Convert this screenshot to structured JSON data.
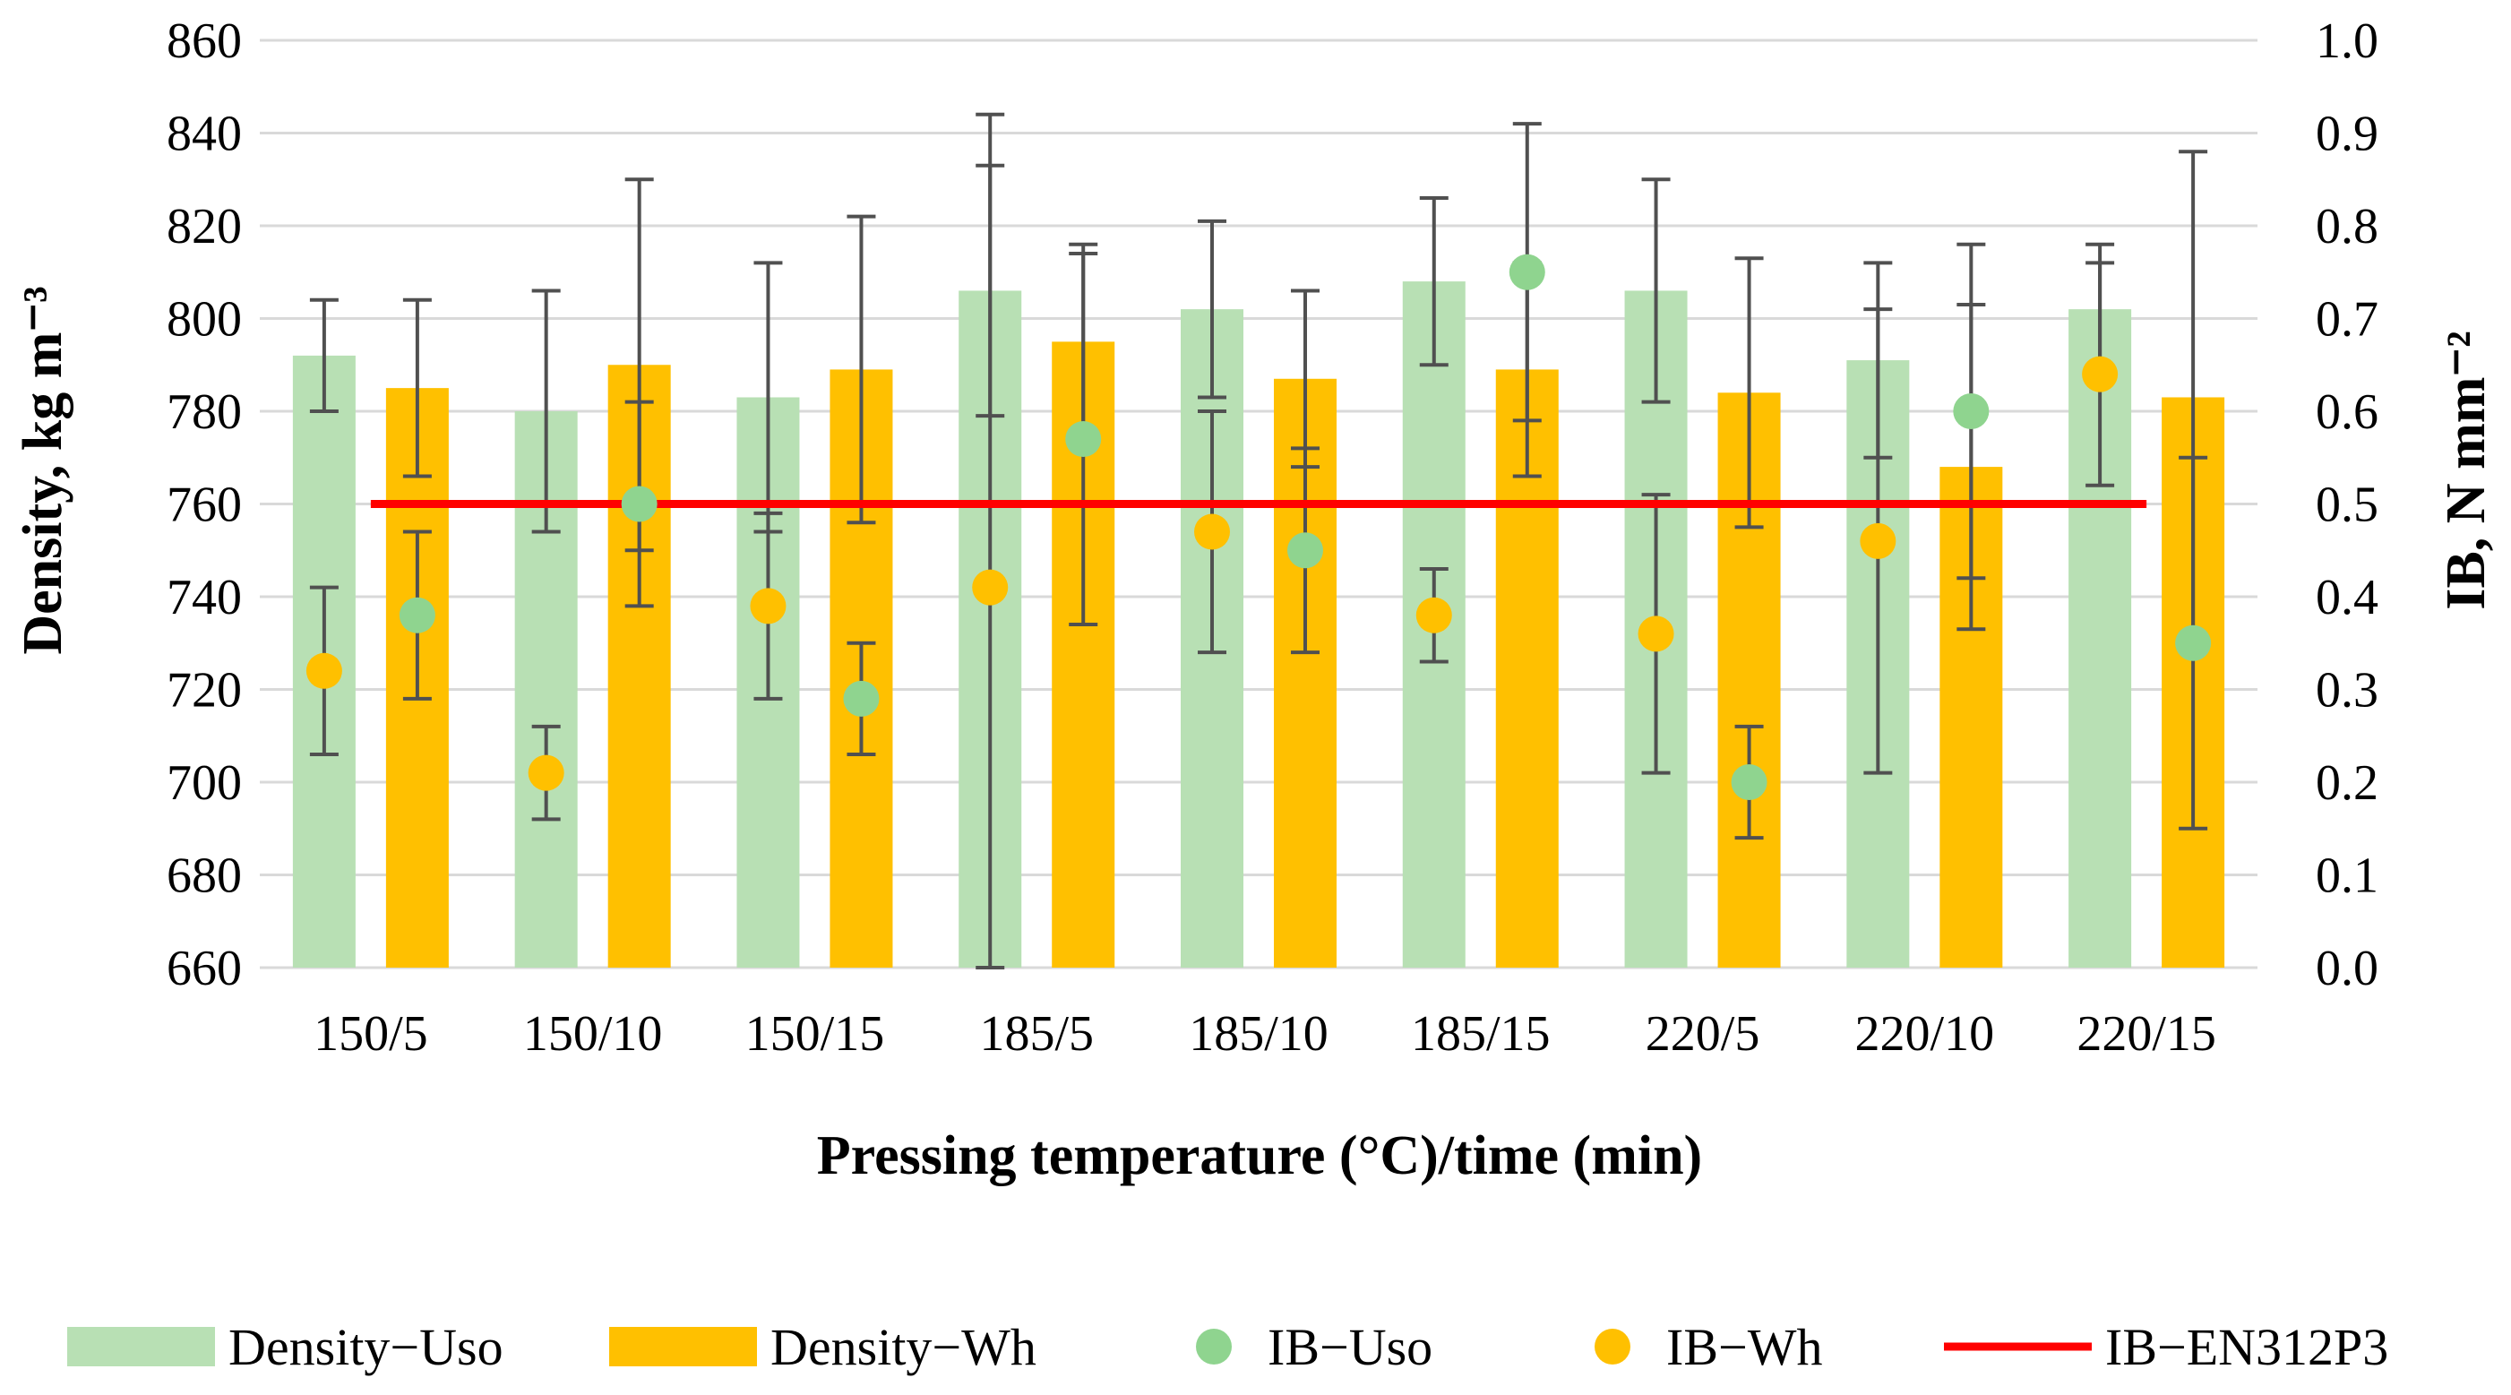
{
  "chart_data": {
    "type": "bar",
    "xlabel": "Pressing temperature (°C)/time (min)",
    "ylabel_left": "Density, kg m⁻³",
    "ylabel_right": "IB, N mm⁻²",
    "categories": [
      "150/5",
      "150/10",
      "150/15",
      "185/5",
      "185/10",
      "185/15",
      "220/5",
      "220/10",
      "220/15"
    ],
    "ylim_left": [
      660,
      860
    ],
    "yticks_left": [
      "660",
      "680",
      "700",
      "720",
      "740",
      "760",
      "780",
      "800",
      "820",
      "840",
      "860"
    ],
    "ylim_right": [
      0.0,
      1.0
    ],
    "yticks_right": [
      "0.0",
      "0.1",
      "0.2",
      "0.3",
      "0.4",
      "0.5",
      "0.6",
      "0.7",
      "0.8",
      "0.9",
      "1.0"
    ],
    "grid": "horizontal",
    "legend_position": "bottom",
    "series": [
      {
        "name": "Density−Uso",
        "kind": "bar",
        "axis": "left",
        "color": "#b8e0b4",
        "values": [
          792,
          780,
          783,
          806,
          802,
          808,
          806,
          791,
          802
        ],
        "error": [
          12,
          26,
          29,
          27,
          19,
          18,
          24,
          21,
          14
        ]
      },
      {
        "name": "Density−Wh",
        "kind": "bar",
        "axis": "left",
        "color": "#ffc000",
        "values": [
          785,
          790,
          789,
          795,
          787,
          789,
          784,
          768,
          783
        ],
        "error": [
          19,
          40,
          33,
          21,
          19,
          23,
          29,
          35,
          53
        ]
      },
      {
        "name": "IB−Uso",
        "kind": "scatter",
        "axis": "right",
        "color": "#8fd48f",
        "values": [
          0.38,
          0.5,
          0.29,
          0.57,
          0.45,
          0.75,
          0.2,
          0.6,
          0.35
        ],
        "error": [
          0.09,
          0.11,
          0.06,
          0.2,
          0.11,
          0.16,
          0.06,
          0.18,
          0.2
        ]
      },
      {
        "name": "IB−Wh",
        "kind": "scatter",
        "axis": "right",
        "color": "#ffc000",
        "values": [
          0.32,
          0.21,
          0.39,
          0.41,
          0.47,
          0.38,
          0.36,
          0.46,
          0.64
        ],
        "error": [
          0.09,
          0.05,
          0.1,
          0.51,
          0.13,
          0.05,
          0.15,
          0.25,
          0.12
        ]
      },
      {
        "name": "IB−EN312P3",
        "kind": "line",
        "axis": "right",
        "color": "#ff0000",
        "values": [
          0.5,
          0.5,
          0.5,
          0.5,
          0.5,
          0.5,
          0.5,
          0.5,
          0.5
        ]
      }
    ]
  }
}
